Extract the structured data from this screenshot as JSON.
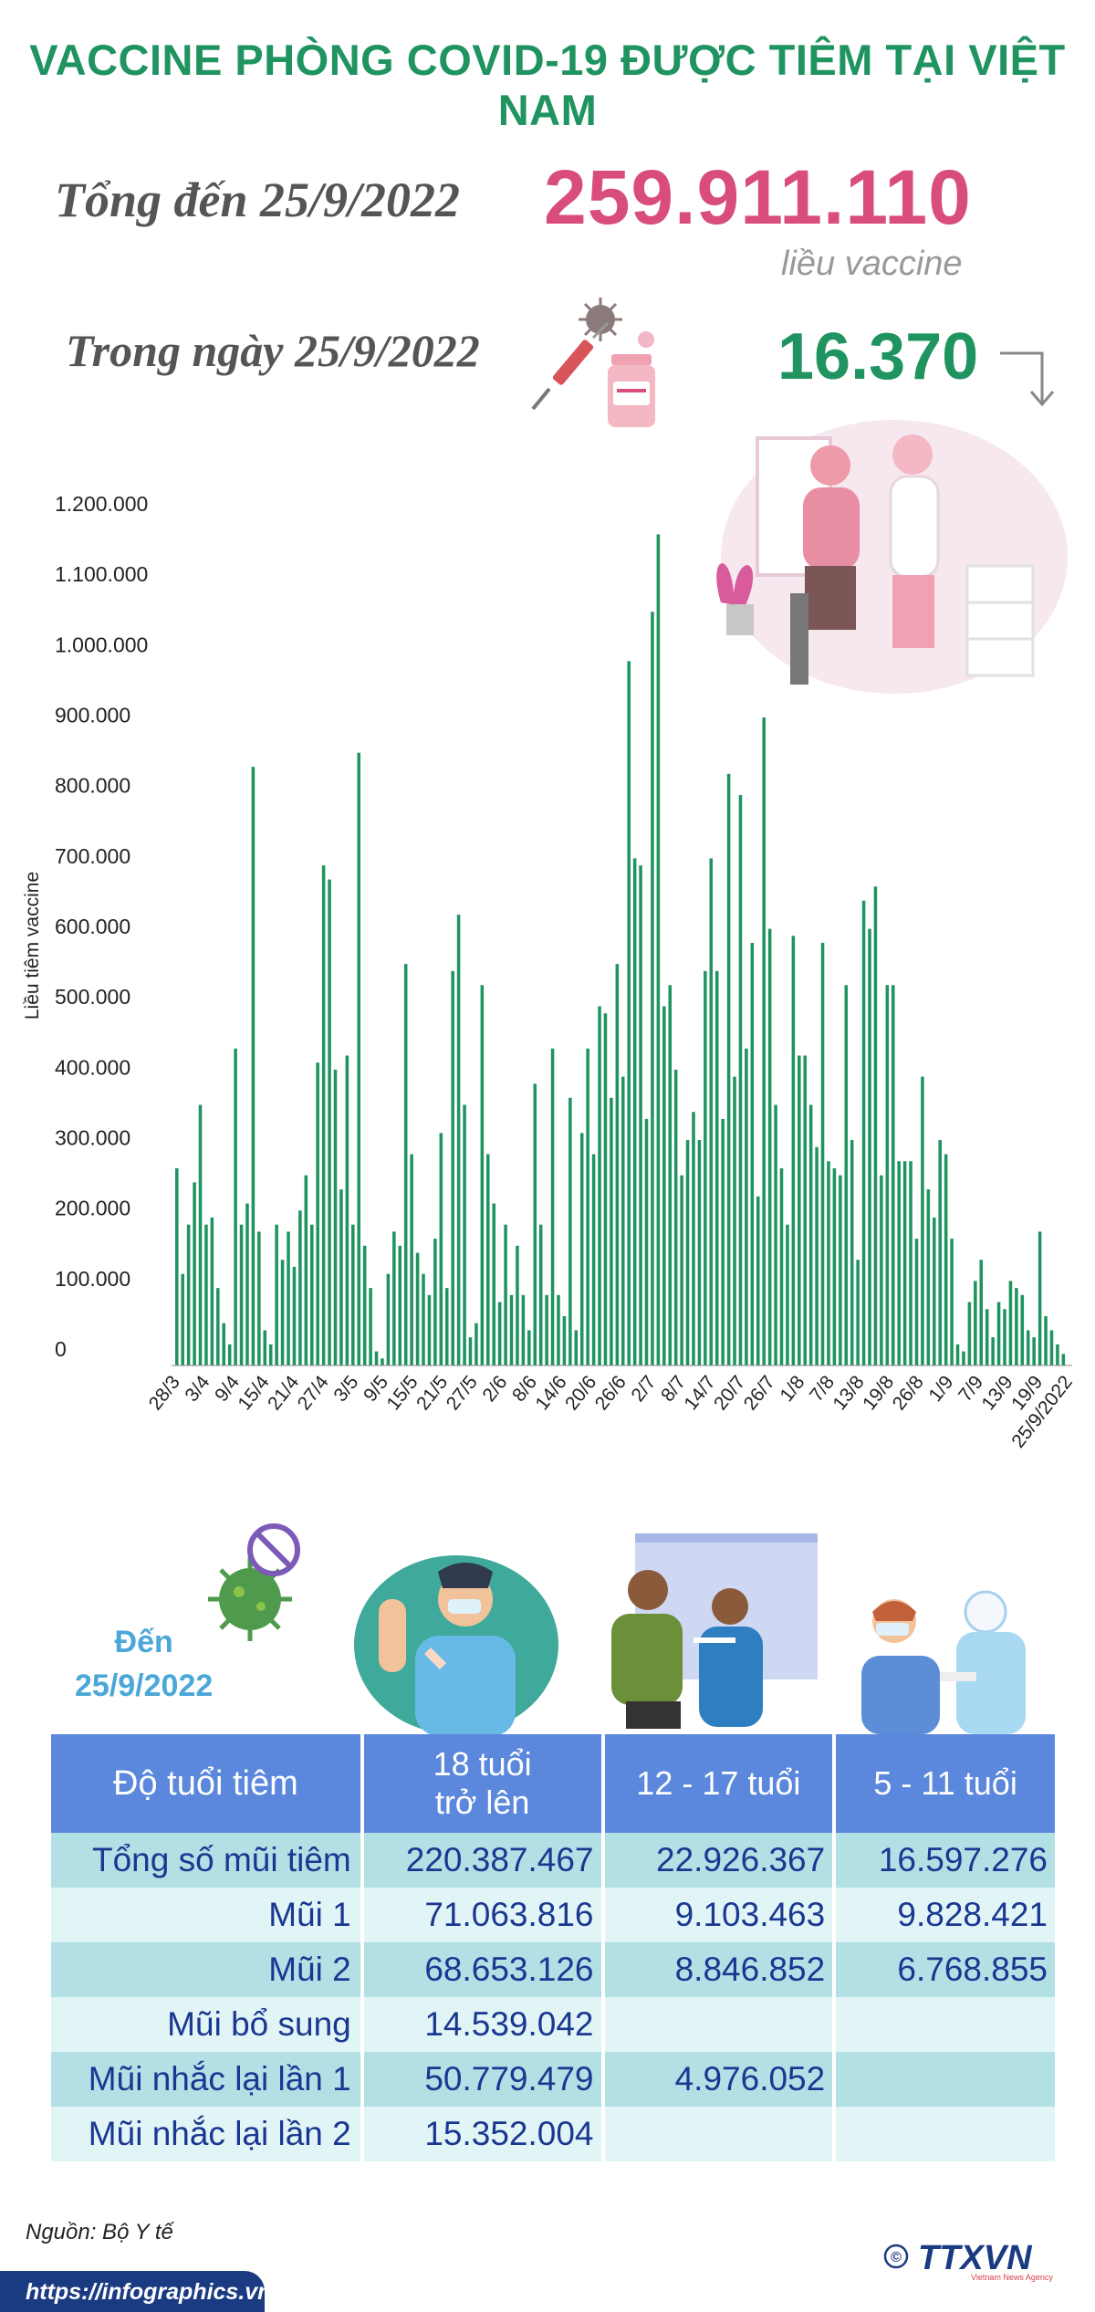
{
  "header": {
    "title": "VACCINE PHÒNG COVID-19 ĐƯỢC TIÊM TẠI VIỆT NAM",
    "total_label": "Tổng đến 25/9/2022",
    "total_value": "259.911.110",
    "total_unit": "liều vaccine",
    "day_label": "Trong ngày 25/9/2022",
    "day_value": "16.370"
  },
  "colors": {
    "title": "#1f9460",
    "total": "#d84d7b",
    "bars": "#1f9460",
    "table_header": "#5b88dc",
    "table_text": "#1a3791",
    "row_dark": "#b2e0e4",
    "row_light": "#e2f5f6"
  },
  "icons": [
    "vaccine-vial-icon",
    "syringe-icon",
    "virus-icon",
    "arrow-down-icon",
    "virus-crossed-icon"
  ],
  "chart_data": {
    "type": "bar",
    "ylabel": "Liều tiêm vaccine",
    "ylim": [
      0,
      1200000
    ],
    "yticks": [
      "0",
      "100.000",
      "200.000",
      "300.000",
      "400.000",
      "500.000",
      "600.000",
      "700.000",
      "800.000",
      "900.000",
      "1.000.000",
      "1.100.000",
      "1.200.000"
    ],
    "xtick_labels": [
      "28/3",
      "3/4",
      "9/4",
      "15/4",
      "21/4",
      "27/4",
      "3/5",
      "9/5",
      "15/5",
      "21/5",
      "27/5",
      "2/6",
      "8/6",
      "14/6",
      "20/6",
      "26/6",
      "2/7",
      "8/7",
      "14/7",
      "20/7",
      "26/7",
      "1/8",
      "7/8",
      "13/8",
      "19/8",
      "26/8",
      "1/9",
      "7/9",
      "13/9",
      "19/9",
      "25/9/2022"
    ],
    "values": [
      280000,
      130000,
      200000,
      260000,
      370000,
      200000,
      210000,
      110000,
      60000,
      30000,
      450000,
      200000,
      230000,
      850000,
      190000,
      50000,
      30000,
      200000,
      150000,
      190000,
      140000,
      220000,
      270000,
      200000,
      430000,
      710000,
      690000,
      420000,
      250000,
      440000,
      200000,
      870000,
      170000,
      110000,
      20000,
      10000,
      130000,
      190000,
      170000,
      570000,
      300000,
      160000,
      130000,
      100000,
      180000,
      330000,
      110000,
      560000,
      640000,
      370000,
      40000,
      60000,
      540000,
      300000,
      230000,
      90000,
      200000,
      100000,
      170000,
      100000,
      50000,
      400000,
      200000,
      100000,
      450000,
      100000,
      70000,
      380000,
      50000,
      330000,
      450000,
      300000,
      510000,
      500000,
      380000,
      570000,
      410000,
      1000000,
      720000,
      710000,
      350000,
      1070000,
      1180000,
      510000,
      540000,
      420000,
      270000,
      320000,
      360000,
      320000,
      560000,
      720000,
      560000,
      350000,
      840000,
      410000,
      810000,
      450000,
      600000,
      240000,
      920000,
      620000,
      370000,
      280000,
      200000,
      610000,
      440000,
      440000,
      370000,
      310000,
      600000,
      290000,
      280000,
      270000,
      540000,
      320000,
      150000,
      660000,
      620000,
      680000,
      270000,
      540000,
      540000,
      290000,
      290000,
      290000,
      180000,
      410000,
      250000,
      210000,
      320000,
      300000,
      180000,
      30000,
      20000,
      90000,
      120000,
      150000,
      80000,
      40000,
      90000,
      80000,
      120000,
      110000,
      100000,
      50000,
      40000,
      190000,
      70000,
      50000,
      30000,
      16370
    ]
  },
  "age_section": {
    "date_prefix": "Đến",
    "date": "25/9/2022"
  },
  "age_table": {
    "headers": [
      [
        "Độ tuổi tiêm"
      ],
      [
        "18 tuổi",
        "trở lên"
      ],
      [
        "12 - 17 tuổi"
      ],
      [
        "5 - 11 tuổi"
      ]
    ],
    "rows": [
      {
        "label": "Tổng số mũi tiêm",
        "values": [
          "220.387.467",
          "22.926.367",
          "16.597.276"
        ]
      },
      {
        "label": "Mũi 1",
        "values": [
          "71.063.816",
          "9.103.463",
          "9.828.421"
        ]
      },
      {
        "label": "Mũi 2",
        "values": [
          "68.653.126",
          "8.846.852",
          "6.768.855"
        ]
      },
      {
        "label": "Mũi bổ sung",
        "values": [
          "14.539.042",
          "",
          ""
        ]
      },
      {
        "label": "Mũi nhắc lại lần 1",
        "values": [
          "50.779.479",
          "4.976.052",
          ""
        ]
      },
      {
        "label": "Mũi nhắc lại lần 2",
        "values": [
          "15.352.004",
          "",
          ""
        ]
      }
    ]
  },
  "footer": {
    "source": "Nguồn: Bộ Y tế",
    "url": "https://infographics.vn",
    "logo_text": "TTXVN",
    "logo_sub": "Vietnam News Agency",
    "copyright": "©"
  }
}
